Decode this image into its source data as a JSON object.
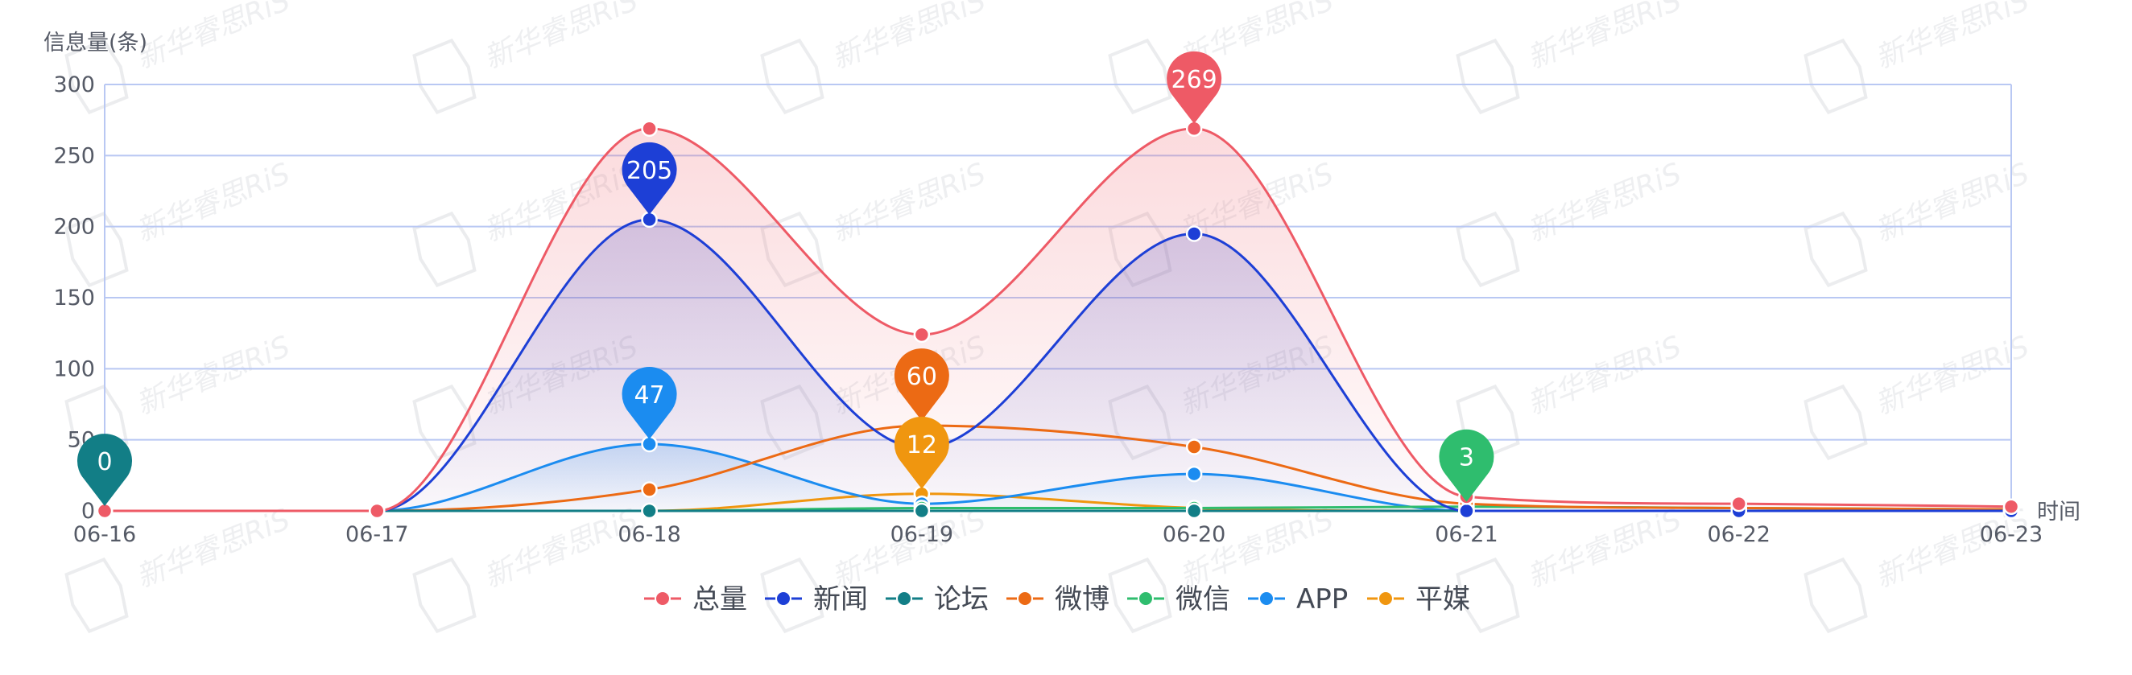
{
  "watermark": "新华睿思RiS",
  "chart_data": {
    "type": "line",
    "ylabel": "信息量(条)",
    "xlabel": "时间",
    "ylim": [
      0,
      300
    ],
    "yticks": [
      0,
      50,
      100,
      150,
      200,
      250,
      300
    ],
    "categories": [
      "06-16",
      "06-17",
      "06-18",
      "06-19",
      "06-20",
      "06-21",
      "06-22",
      "06-23"
    ],
    "smooth": true,
    "grid": true,
    "legend_position": "bottom-center",
    "series": [
      {
        "name": "总量",
        "color": "#ee5a66",
        "values": [
          0,
          0,
          269,
          124,
          269,
          10,
          5,
          3
        ],
        "area": true,
        "pin": {
          "index": 4,
          "label": "269"
        }
      },
      {
        "name": "新闻",
        "color": "#1d3fd6",
        "values": [
          0,
          0,
          205,
          44,
          195,
          0,
          0,
          0
        ],
        "area": true,
        "pin": {
          "index": 2,
          "label": "205"
        }
      },
      {
        "name": "论坛",
        "color": "#127e86",
        "values": [
          0,
          0,
          0,
          0,
          0,
          0,
          0,
          0
        ],
        "area": false,
        "pin": {
          "index": 0,
          "label": "0"
        }
      },
      {
        "name": "微博",
        "color": "#ec6a14",
        "values": [
          0,
          0,
          15,
          60,
          45,
          5,
          2,
          1
        ],
        "area": false,
        "pin": {
          "index": 3,
          "label": "60"
        }
      },
      {
        "name": "微信",
        "color": "#2fbd6e",
        "values": [
          0,
          0,
          0,
          2,
          2,
          3,
          2,
          1
        ],
        "area": false,
        "pin": {
          "index": 5,
          "label": "3"
        }
      },
      {
        "name": "APP",
        "color": "#1b8cf0",
        "values": [
          0,
          0,
          47,
          5,
          26,
          0,
          0,
          0
        ],
        "area": true,
        "pin": {
          "index": 2,
          "label": "47"
        }
      },
      {
        "name": "平媒",
        "color": "#f0960f",
        "values": [
          0,
          0,
          0,
          12,
          2,
          0,
          0,
          0
        ],
        "area": false,
        "pin": {
          "index": 3,
          "label": "12"
        }
      }
    ]
  }
}
